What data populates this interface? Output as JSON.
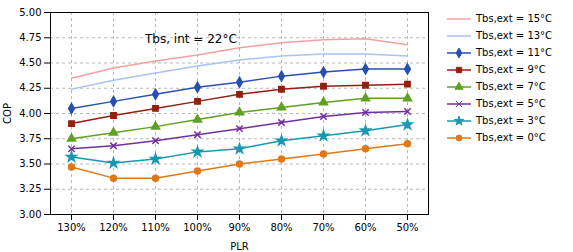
{
  "chart_data": {
    "type": "line",
    "annotation": "Tbs, int = 22°C",
    "xlabel": "PLR",
    "ylabel": "COP",
    "categories": [
      "130%",
      "120%",
      "110%",
      "100%",
      "90%",
      "80%",
      "70%",
      "60%",
      "50%"
    ],
    "series": [
      {
        "name": "Tbs,ext = 15°C",
        "color": "#f4a0a0",
        "marker": "none",
        "values": [
          4.35,
          4.45,
          4.52,
          4.58,
          4.65,
          4.7,
          4.73,
          4.74,
          4.68
        ]
      },
      {
        "name": "Tbs,ext = 13°C",
        "color": "#a8c4f0",
        "marker": "none",
        "values": [
          4.24,
          4.33,
          4.4,
          4.47,
          4.53,
          4.57,
          4.59,
          4.59,
          4.57
        ]
      },
      {
        "name": "Tbs,ext = 11°C",
        "color": "#2850b0",
        "marker": "diamond",
        "values": [
          4.05,
          4.12,
          4.19,
          4.26,
          4.31,
          4.37,
          4.41,
          4.44,
          4.44
        ]
      },
      {
        "name": "Tbs,ext = 9°C",
        "color": "#902010",
        "marker": "square",
        "values": [
          3.9,
          3.98,
          4.05,
          4.12,
          4.19,
          4.24,
          4.27,
          4.28,
          4.29
        ]
      },
      {
        "name": "Tbs,ext = 7°C",
        "color": "#60a020",
        "marker": "triangle",
        "values": [
          3.75,
          3.81,
          3.87,
          3.94,
          4.01,
          4.06,
          4.11,
          4.15,
          4.15
        ]
      },
      {
        "name": "Tbs,ext = 5°C",
        "color": "#7030a0",
        "marker": "times",
        "values": [
          3.65,
          3.68,
          3.73,
          3.79,
          3.85,
          3.91,
          3.97,
          4.01,
          4.02
        ]
      },
      {
        "name": "Tbs,ext = 3°C",
        "color": "#1898b0",
        "marker": "star",
        "values": [
          3.57,
          3.51,
          3.55,
          3.62,
          3.65,
          3.73,
          3.78,
          3.83,
          3.89
        ]
      },
      {
        "name": "Tbs,ext = 0°C",
        "color": "#e07818",
        "marker": "circle",
        "values": [
          3.47,
          3.36,
          3.36,
          3.43,
          3.5,
          3.55,
          3.6,
          3.65,
          3.7
        ]
      }
    ],
    "ylim": [
      3.0,
      5.0
    ],
    "yticks": [
      {
        "value": 3.0,
        "label": "3.00"
      },
      3.25,
      {
        "value": 3.5,
        "label": "3.50"
      },
      3.75,
      {
        "value": 4.0,
        "label": "4.00"
      },
      4.25,
      {
        "value": 4.5,
        "label": "4.50"
      },
      4.75,
      {
        "value": 5.0,
        "label": "5.00"
      }
    ],
    "grid": true,
    "legend": "right"
  }
}
